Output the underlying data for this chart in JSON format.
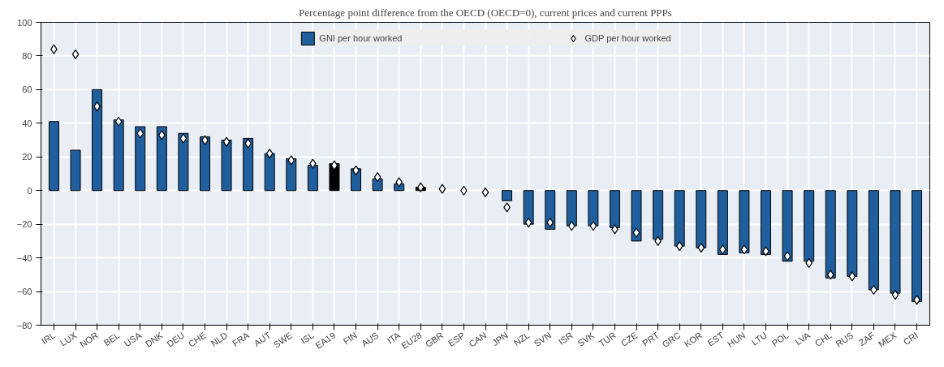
{
  "chart_data": {
    "type": "bar",
    "title": "Percentage point difference from the OECD (OECD=0), current prices and current PPPs",
    "categories": [
      "IRL",
      "LUX",
      "NOR",
      "BEL",
      "USA",
      "DNK",
      "DEU",
      "CHE",
      "NLD",
      "FRA",
      "AUT",
      "SWE",
      "ISL",
      "EA19",
      "FIN",
      "AUS",
      "ITA",
      "EU28",
      "GBR",
      "ESP",
      "CAN",
      "JPN",
      "NZL",
      "SVN",
      "ISR",
      "SVK",
      "TUR",
      "CZE",
      "PRT",
      "GRC",
      "KOR",
      "EST",
      "HUN",
      "LTU",
      "POL",
      "LVA",
      "CHL",
      "RUS",
      "ZAF",
      "MEX",
      "CRI"
    ],
    "series": [
      {
        "name": "GNI per hour worked",
        "colors": [
          "#1f5f9e",
          "#1f5f9e",
          "#1f5f9e",
          "#1f5f9e",
          "#1f5f9e",
          "#1f5f9e",
          "#1f5f9e",
          "#1f5f9e",
          "#1f5f9e",
          "#1f5f9e",
          "#1f5f9e",
          "#1f5f9e",
          "#1f5f9e",
          "#000000",
          "#1f5f9e",
          "#1f5f9e",
          "#1f5f9e",
          "#000000",
          "#1f5f9e",
          "#1f5f9e",
          "#1f5f9e",
          "#1f5f9e",
          "#1f5f9e",
          "#1f5f9e",
          "#1f5f9e",
          "#1f5f9e",
          "#1f5f9e",
          "#1f5f9e",
          "#1f5f9e",
          "#1f5f9e",
          "#1f5f9e",
          "#1f5f9e",
          "#1f5f9e",
          "#1f5f9e",
          "#1f5f9e",
          "#1f5f9e",
          "#1f5f9e",
          "#1f5f9e",
          "#1f5f9e",
          "#1f5f9e",
          "#1f5f9e"
        ],
        "values": [
          41,
          24,
          60,
          42,
          38,
          38,
          34,
          32,
          30,
          31,
          22,
          19,
          15,
          16,
          13,
          7,
          4,
          2,
          null,
          null,
          null,
          -6,
          -20,
          -23,
          -21,
          -21,
          -22,
          -30,
          -29,
          -33,
          -34,
          -38,
          -37,
          -38,
          -42,
          -42,
          -52,
          -51,
          -59,
          -61,
          -66
        ]
      },
      {
        "name": "GDP per hour worked",
        "type": "scatter",
        "marker": "diamond",
        "color": "#ffffff",
        "values": [
          84,
          81,
          50,
          41,
          34,
          33,
          31,
          30,
          29,
          28,
          22,
          18,
          16,
          15,
          12,
          8,
          5,
          2,
          1,
          0,
          -1,
          -10,
          -19,
          -19,
          -21,
          -21,
          -23,
          -25,
          -30,
          -33,
          -34,
          -35,
          -35,
          -36,
          -39,
          -43,
          -50,
          -51,
          -59,
          -62,
          -65
        ]
      }
    ],
    "ylim": [
      -80,
      100
    ],
    "yticks": [
      -80,
      -60,
      -40,
      -20,
      0,
      20,
      40,
      60,
      80,
      100
    ],
    "grid": true,
    "legend": "top"
  }
}
